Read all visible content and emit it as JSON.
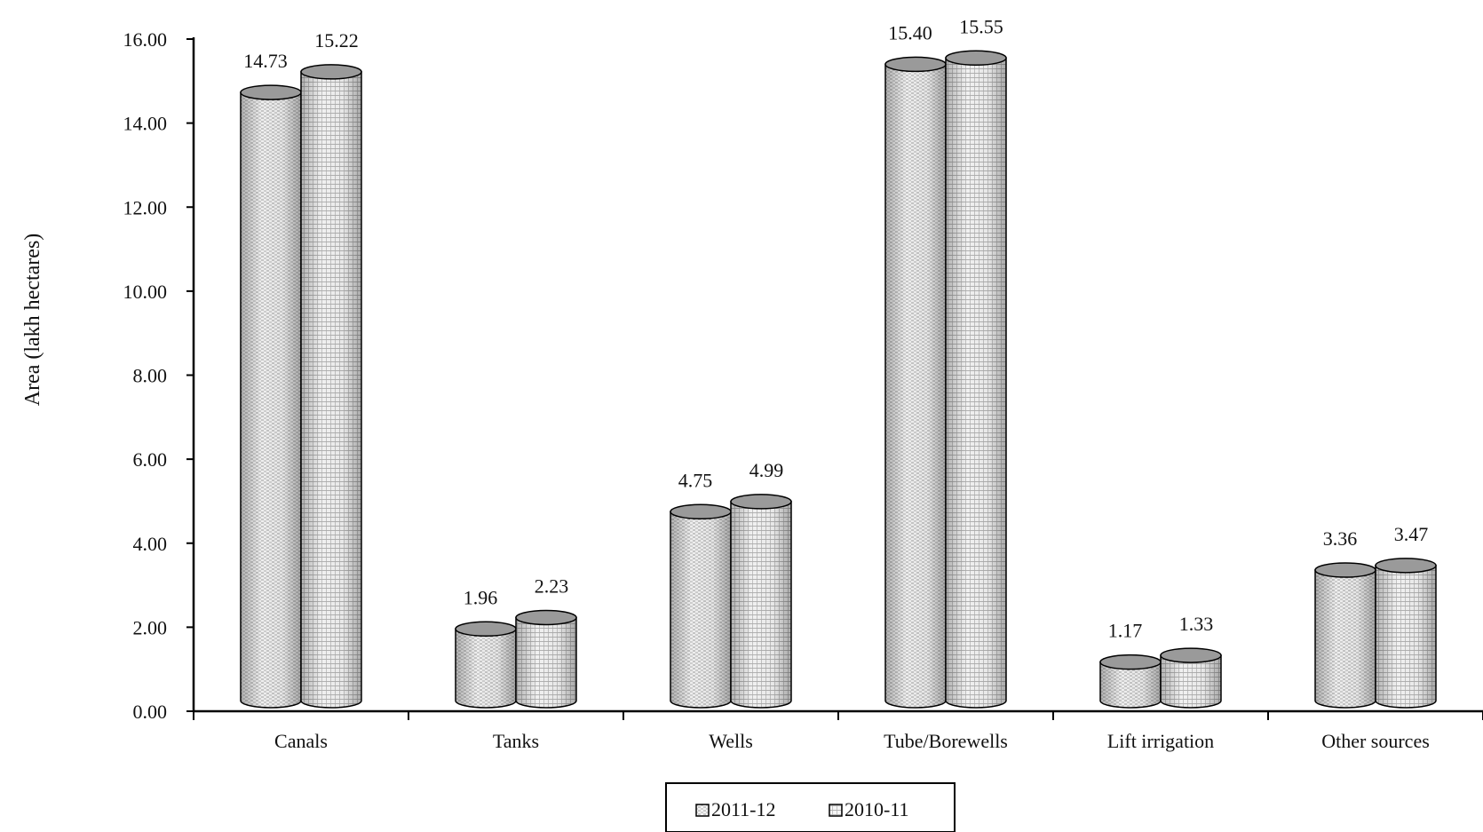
{
  "chart_data": {
    "type": "bar",
    "title": "",
    "xlabel": "",
    "ylabel": "Area (lakh hectares)",
    "ylim": [
      0,
      16
    ],
    "yticks": [
      "0.00",
      "2.00",
      "4.00",
      "6.00",
      "8.00",
      "10.00",
      "12.00",
      "14.00",
      "16.00"
    ],
    "categories": [
      "Canals",
      "Tanks",
      "Wells",
      "Tube/Borewells",
      "Lift irrigation",
      "Other sources"
    ],
    "series": [
      {
        "name": "2011-12",
        "values": [
          14.73,
          1.96,
          4.75,
          15.4,
          1.17,
          3.36
        ],
        "labels": [
          "14.73",
          "1.96",
          "4.75",
          "15.40",
          "1.17",
          "3.36"
        ]
      },
      {
        "name": "2010-11",
        "values": [
          15.22,
          2.23,
          4.99,
          15.55,
          1.33,
          3.47
        ],
        "labels": [
          "15.22",
          "2.23",
          "4.99",
          "15.55",
          "1.33",
          "3.47"
        ]
      }
    ],
    "grid": false,
    "legend_position": "bottom-center",
    "bar_style": "3d-cylinder, patterned gray"
  }
}
